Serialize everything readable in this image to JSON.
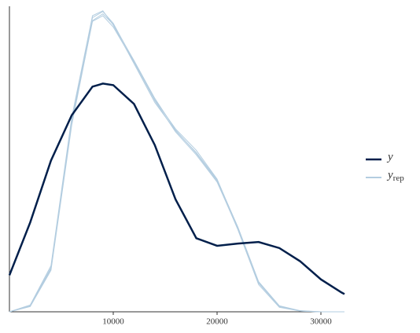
{
  "chart_data": {
    "type": "density_overlay",
    "x": [
      0,
      2000,
      4000,
      6000,
      8000,
      9000,
      10000,
      12000,
      14000,
      16000,
      18000,
      20000,
      22000,
      24000,
      26000,
      28000,
      30000,
      32000,
      32273
    ],
    "xlim": [
      0,
      32273
    ],
    "xticks": [
      10000,
      20000,
      30000
    ],
    "ylim": [
      0,
      8.1
    ],
    "legend": "right",
    "series": [
      {
        "name": "y",
        "color": "#011f4b",
        "values": [
          0.97,
          2.37,
          4.01,
          5.21,
          5.97,
          6.05,
          6.01,
          5.51,
          4.42,
          2.98,
          1.95,
          1.75,
          1.81,
          1.85,
          1.69,
          1.34,
          0.86,
          0.51,
          0.47
        ]
      },
      {
        "name": "y",
        "subscript": "rep",
        "color": "#b3cde0",
        "draws": [
          [
            0,
            0.16,
            1.17,
            5.08,
            7.8,
            7.96,
            7.65,
            6.63,
            5.6,
            4.77,
            4.16,
            3.44,
            2.2,
            0.76,
            0.14,
            0.02,
            0,
            0,
            0
          ],
          [
            0,
            0.14,
            1.1,
            4.95,
            7.72,
            7.9,
            7.62,
            6.66,
            5.66,
            4.82,
            4.2,
            3.47,
            2.18,
            0.72,
            0.12,
            0.02,
            0,
            0,
            0
          ],
          [
            0,
            0.18,
            1.22,
            5.15,
            7.85,
            7.98,
            7.6,
            6.58,
            5.55,
            4.8,
            4.22,
            3.5,
            2.25,
            0.8,
            0.16,
            0.03,
            0,
            0,
            0
          ],
          [
            0,
            0.15,
            1.14,
            5.02,
            7.7,
            7.85,
            7.55,
            6.62,
            5.62,
            4.85,
            4.28,
            3.52,
            2.22,
            0.78,
            0.15,
            0.02,
            0,
            0,
            0
          ]
        ]
      }
    ]
  }
}
